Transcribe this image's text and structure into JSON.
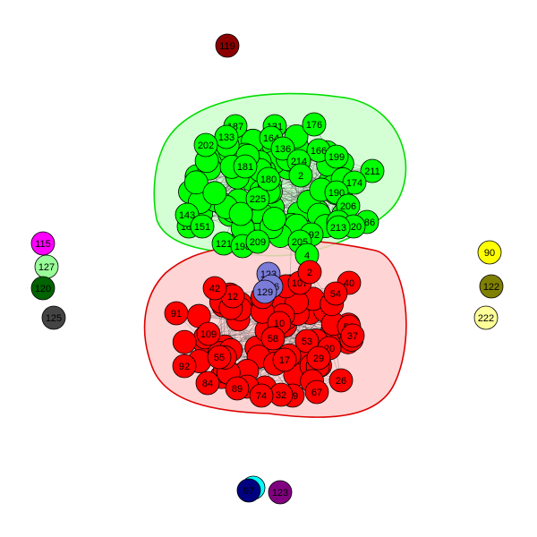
{
  "colors": {
    "green_cluster_fill": "#00ff00",
    "green_cluster_stroke": "#00cc00",
    "red_cluster_fill": "#ff0000",
    "red_cluster_stroke": "#e00000",
    "hull_green_fill": "#ccffcc",
    "hull_red_fill": "#ffcccc",
    "blue_cluster_fill": "#7b7bd8",
    "edge": "#555555"
  },
  "isolates": [
    {
      "id": "119",
      "color": "#8b0000"
    },
    {
      "id": "115",
      "color": "#ff00ff"
    },
    {
      "id": "127",
      "color": "#99ff99"
    },
    {
      "id": "120",
      "color": "#006400"
    },
    {
      "id": "125",
      "color": "#444444"
    },
    {
      "id": "90",
      "color": "#ffff00"
    },
    {
      "id": "122",
      "color": "#808000"
    },
    {
      "id": "222",
      "color": "#ffff99"
    },
    {
      "id": "123",
      "color": "#800080"
    },
    {
      "id": "97",
      "color": "#000080",
      "overlap": "#00ffff"
    }
  ],
  "green_cluster": {
    "labeled": [
      "187",
      "131",
      "176",
      "133",
      "164",
      "136",
      "202",
      "166",
      "199",
      "214",
      "211",
      "174",
      "190",
      "206",
      "186",
      "217",
      "220",
      "213",
      "192",
      "189",
      "143",
      "151",
      "121",
      "198",
      "209",
      "205",
      "4",
      "225",
      "181",
      "180",
      "2"
    ],
    "unlabeled_count": 80
  },
  "red_cluster": {
    "labeled": [
      "91",
      "107",
      "40",
      "54",
      "52",
      "37",
      "26",
      "67",
      "49",
      "32",
      "74",
      "89",
      "84",
      "92",
      "109",
      "55",
      "53",
      "20",
      "29",
      "2",
      "10",
      "12",
      "17",
      "58",
      "42"
    ],
    "unlabeled_count": 65
  },
  "blue_cluster": {
    "labeled": [
      "123",
      "126",
      "129"
    ]
  }
}
